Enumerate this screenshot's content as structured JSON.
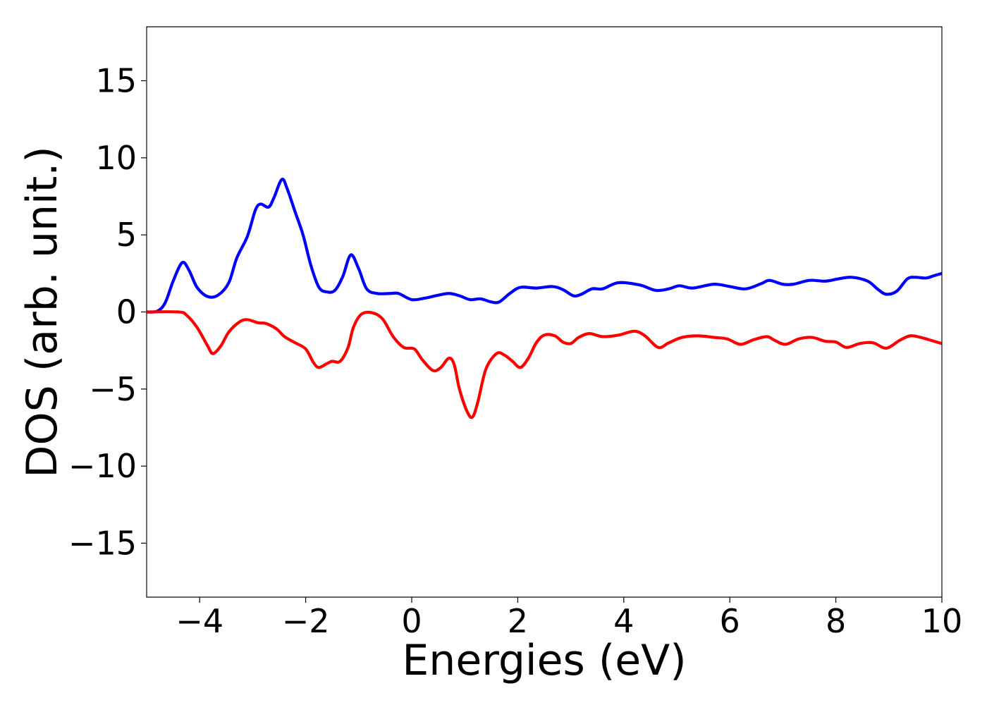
{
  "chart_data": {
    "type": "line",
    "title": "",
    "xlabel": "Energies (eV)",
    "ylabel": "DOS (arb. unit.)",
    "xlim": [
      -5,
      10
    ],
    "ylim": [
      -18.5,
      18.5
    ],
    "xticks": [
      -4,
      -2,
      0,
      2,
      4,
      6,
      8,
      10
    ],
    "xtick_labels": [
      "−4",
      "−2",
      "0",
      "2",
      "4",
      "6",
      "8",
      "10"
    ],
    "yticks": [
      -15,
      -10,
      -5,
      0,
      5,
      10,
      15
    ],
    "ytick_labels": [
      "−15",
      "−10",
      "−5",
      "0",
      "5",
      "10",
      "15"
    ],
    "grid": false,
    "legend": "none",
    "series": [
      {
        "color": "#0000ff",
        "points": [
          [
            -5.0,
            0.0
          ],
          [
            -4.8,
            0.05
          ],
          [
            -4.65,
            0.6
          ],
          [
            -4.5,
            2.0
          ],
          [
            -4.33,
            3.2
          ],
          [
            -4.2,
            2.7
          ],
          [
            -4.05,
            1.6
          ],
          [
            -3.85,
            1.0
          ],
          [
            -3.65,
            1.1
          ],
          [
            -3.45,
            1.9
          ],
          [
            -3.3,
            3.5
          ],
          [
            -3.1,
            4.9
          ],
          [
            -2.95,
            6.6
          ],
          [
            -2.85,
            7.0
          ],
          [
            -2.7,
            6.8
          ],
          [
            -2.6,
            7.4
          ],
          [
            -2.45,
            8.6
          ],
          [
            -2.35,
            8.0
          ],
          [
            -2.2,
            6.5
          ],
          [
            -2.05,
            5.0
          ],
          [
            -1.9,
            3.0
          ],
          [
            -1.75,
            1.6
          ],
          [
            -1.6,
            1.3
          ],
          [
            -1.45,
            1.4
          ],
          [
            -1.3,
            2.3
          ],
          [
            -1.15,
            3.7
          ],
          [
            -1.0,
            2.8
          ],
          [
            -0.85,
            1.5
          ],
          [
            -0.65,
            1.2
          ],
          [
            -0.4,
            1.2
          ],
          [
            -0.25,
            1.2
          ],
          [
            0.0,
            0.8
          ],
          [
            0.25,
            0.9
          ],
          [
            0.45,
            1.05
          ],
          [
            0.7,
            1.2
          ],
          [
            0.9,
            1.05
          ],
          [
            1.1,
            0.8
          ],
          [
            1.3,
            0.85
          ],
          [
            1.5,
            0.65
          ],
          [
            1.65,
            0.65
          ],
          [
            1.85,
            1.2
          ],
          [
            2.05,
            1.6
          ],
          [
            2.35,
            1.55
          ],
          [
            2.65,
            1.65
          ],
          [
            2.85,
            1.45
          ],
          [
            3.05,
            1.05
          ],
          [
            3.2,
            1.15
          ],
          [
            3.4,
            1.5
          ],
          [
            3.6,
            1.5
          ],
          [
            3.9,
            1.9
          ],
          [
            4.3,
            1.75
          ],
          [
            4.6,
            1.4
          ],
          [
            4.85,
            1.5
          ],
          [
            5.05,
            1.7
          ],
          [
            5.3,
            1.55
          ],
          [
            5.7,
            1.8
          ],
          [
            6.0,
            1.65
          ],
          [
            6.3,
            1.5
          ],
          [
            6.6,
            1.85
          ],
          [
            6.75,
            2.05
          ],
          [
            7.0,
            1.8
          ],
          [
            7.2,
            1.8
          ],
          [
            7.5,
            2.05
          ],
          [
            7.8,
            2.0
          ],
          [
            8.05,
            2.15
          ],
          [
            8.3,
            2.25
          ],
          [
            8.6,
            2.0
          ],
          [
            8.8,
            1.45
          ],
          [
            8.95,
            1.15
          ],
          [
            9.15,
            1.35
          ],
          [
            9.35,
            2.15
          ],
          [
            9.5,
            2.25
          ],
          [
            9.7,
            2.2
          ],
          [
            9.85,
            2.35
          ],
          [
            10.0,
            2.5
          ]
        ]
      },
      {
        "color": "#ff0000",
        "points": [
          [
            -5.0,
            0.0
          ],
          [
            -4.4,
            0.0
          ],
          [
            -4.25,
            -0.2
          ],
          [
            -4.05,
            -1.0
          ],
          [
            -3.85,
            -2.2
          ],
          [
            -3.75,
            -2.7
          ],
          [
            -3.6,
            -2.2
          ],
          [
            -3.45,
            -1.3
          ],
          [
            -3.25,
            -0.65
          ],
          [
            -3.1,
            -0.5
          ],
          [
            -2.9,
            -0.7
          ],
          [
            -2.75,
            -0.75
          ],
          [
            -2.55,
            -1.1
          ],
          [
            -2.4,
            -1.6
          ],
          [
            -2.2,
            -2.0
          ],
          [
            -2.0,
            -2.4
          ],
          [
            -1.85,
            -3.3
          ],
          [
            -1.75,
            -3.6
          ],
          [
            -1.6,
            -3.35
          ],
          [
            -1.5,
            -3.2
          ],
          [
            -1.35,
            -3.2
          ],
          [
            -1.2,
            -2.3
          ],
          [
            -1.1,
            -1.0
          ],
          [
            -0.95,
            -0.15
          ],
          [
            -0.75,
            -0.05
          ],
          [
            -0.55,
            -0.45
          ],
          [
            -0.35,
            -1.6
          ],
          [
            -0.15,
            -2.3
          ],
          [
            0.05,
            -2.4
          ],
          [
            0.2,
            -3.1
          ],
          [
            0.4,
            -3.8
          ],
          [
            0.55,
            -3.6
          ],
          [
            0.7,
            -3.0
          ],
          [
            0.8,
            -3.4
          ],
          [
            0.9,
            -5.0
          ],
          [
            1.05,
            -6.5
          ],
          [
            1.15,
            -6.8
          ],
          [
            1.25,
            -5.8
          ],
          [
            1.4,
            -3.7
          ],
          [
            1.6,
            -2.7
          ],
          [
            1.75,
            -2.8
          ],
          [
            1.9,
            -3.2
          ],
          [
            2.05,
            -3.6
          ],
          [
            2.2,
            -3.0
          ],
          [
            2.35,
            -2.0
          ],
          [
            2.5,
            -1.5
          ],
          [
            2.7,
            -1.55
          ],
          [
            2.85,
            -1.95
          ],
          [
            3.0,
            -2.05
          ],
          [
            3.15,
            -1.65
          ],
          [
            3.35,
            -1.4
          ],
          [
            3.6,
            -1.6
          ],
          [
            3.9,
            -1.5
          ],
          [
            4.2,
            -1.25
          ],
          [
            4.4,
            -1.55
          ],
          [
            4.65,
            -2.3
          ],
          [
            4.85,
            -2.0
          ],
          [
            5.1,
            -1.65
          ],
          [
            5.4,
            -1.55
          ],
          [
            5.7,
            -1.65
          ],
          [
            5.95,
            -1.75
          ],
          [
            6.2,
            -2.1
          ],
          [
            6.45,
            -1.8
          ],
          [
            6.7,
            -1.6
          ],
          [
            6.85,
            -1.85
          ],
          [
            7.05,
            -2.1
          ],
          [
            7.3,
            -1.75
          ],
          [
            7.55,
            -1.65
          ],
          [
            7.8,
            -1.9
          ],
          [
            8.0,
            -1.95
          ],
          [
            8.2,
            -2.3
          ],
          [
            8.45,
            -2.05
          ],
          [
            8.7,
            -2.0
          ],
          [
            8.95,
            -2.35
          ],
          [
            9.2,
            -1.85
          ],
          [
            9.4,
            -1.55
          ],
          [
            9.6,
            -1.65
          ],
          [
            9.85,
            -1.9
          ],
          [
            10.0,
            -2.05
          ]
        ]
      }
    ]
  }
}
